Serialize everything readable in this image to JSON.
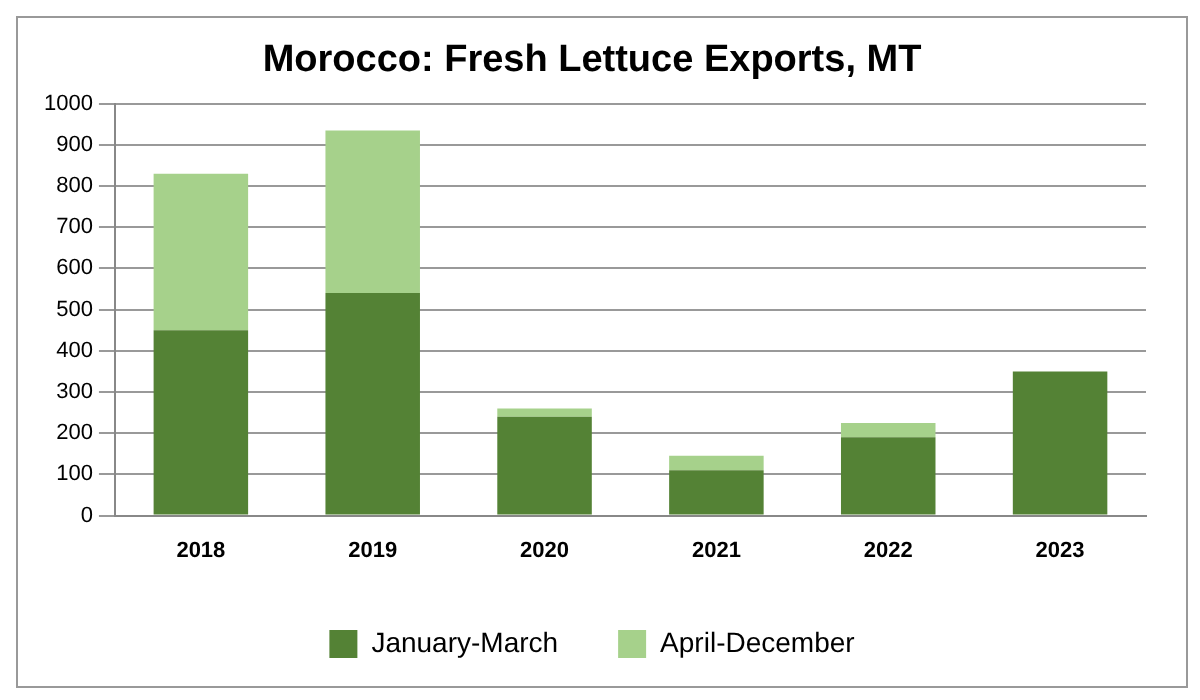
{
  "chart_data": {
    "type": "bar",
    "title": "Morocco: Fresh Lettuce Exports, MT",
    "categories": [
      "2018",
      "2019",
      "2020",
      "2021",
      "2022",
      "2023"
    ],
    "series": [
      {
        "name": "January-March",
        "color": "#548235",
        "values": [
          450,
          540,
          240,
          110,
          190,
          350
        ]
      },
      {
        "name": "April-December",
        "color": "#a6d18b",
        "values": [
          380,
          395,
          20,
          35,
          35,
          0
        ]
      }
    ],
    "stacked": true,
    "ylim": [
      0,
      1000
    ],
    "yticks": [
      0,
      100,
      200,
      300,
      400,
      500,
      600,
      700,
      800,
      900,
      1000
    ],
    "grid": "y",
    "legend": "bottom"
  }
}
